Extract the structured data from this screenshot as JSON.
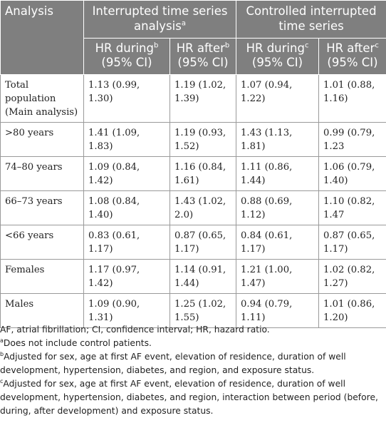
{
  "header": {
    "analysis": "Analysis",
    "group1": "Interrupted time series analysis",
    "group1_sup": "a",
    "group2": "Controlled interrupted time series",
    "hr_during": "HR during",
    "hr_after": "HR after",
    "ci": "(95% CI)",
    "sup_b": "b",
    "sup_c": "c"
  },
  "rows": [
    {
      "label": "Total population (Main analysis)",
      "its_during": "1.13 (0.99, 1.30)",
      "its_after": "1.19 (1.02, 1.39)",
      "cits_during": "1.07 (0.94, 1.22)",
      "cits_after": "1.01 (0.88, 1.16)"
    },
    {
      "label": ">80 years",
      "its_during": "1.41 (1.09, 1.83)",
      "its_after": "1.19 (0.93, 1.52)",
      "cits_during": "1.43 (1.13, 1.81)",
      "cits_after": "0.99 (0.79, 1.23"
    },
    {
      "label": "74–80 years",
      "its_during": "1.09 (0.84, 1.42)",
      "its_after": "1.16 (0.84, 1.61)",
      "cits_during": "1.11 (0.86, 1.44)",
      "cits_after": "1.06 (0.79, 1.40)"
    },
    {
      "label": "66–73 years",
      "its_during": "1.08 (0.84, 1.40)",
      "its_after": "1.43 (1.02, 2.0)",
      "cits_during": "0.88 (0.69, 1.12)",
      "cits_after": "1.10 (0.82, 1.47"
    },
    {
      "label": "<66 years",
      "its_during": "0.83 (0.61, 1.17)",
      "its_after": "0.87 (0.65, 1.17)",
      "cits_during": "0.84 (0.61, 1.17)",
      "cits_after": "0.87 (0.65, 1.17)"
    },
    {
      "label": "Females",
      "its_during": "1.17 (0.97, 1.42)",
      "its_after": "1.14 (0.91, 1.44)",
      "cits_during": "1.21 (1.00, 1.47)",
      "cits_after": "1.02 (0.82, 1.27)"
    },
    {
      "label": "Males",
      "its_during": "1.09 (0.90, 1.31)",
      "its_after": "1.25 (1.02, 1.55)",
      "cits_during": "0.94 (0.79, 1.11)",
      "cits_after": "1.01 (0.86, 1.20)"
    }
  ],
  "footnotes": {
    "abbrev": "AF, atrial fibrillation; CI, confidence interval; HR, hazard ratio.",
    "a_mark": "a",
    "a_text": "Does not include control patients.",
    "b_mark": "b",
    "b_text": "Adjusted for sex, age at first AF event, elevation of residence, duration of well development, hypertension, diabetes, and region, and exposure status.",
    "c_mark": "c",
    "c_text": "Adjusted for sex, age at first AF event, elevation of residence, duration of well development, hypertension, diabetes, and region, interaction between period (before, during, after development) and exposure status."
  },
  "colors": {
    "header_bg": "#7f7f7f",
    "header_text": "#ffffff",
    "border": "#9a9a9a"
  }
}
